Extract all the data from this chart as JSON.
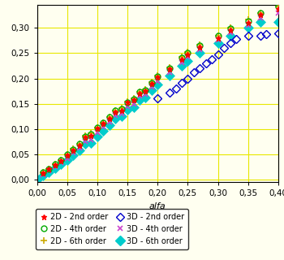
{
  "title": "",
  "xlabel": "alfa",
  "ylabel": "",
  "xlim": [
    0,
    0.4
  ],
  "ylim": [
    -0.005,
    0.345
  ],
  "xticks": [
    0,
    0.05,
    0.1,
    0.15,
    0.2,
    0.25,
    0.3,
    0.35,
    0.4
  ],
  "yticks": [
    0,
    0.05,
    0.1,
    0.15,
    0.2,
    0.25,
    0.3
  ],
  "background_color": "#fffff0",
  "series": {
    "2D_2nd": {
      "x": [
        0.01,
        0.02,
        0.03,
        0.04,
        0.05,
        0.06,
        0.07,
        0.08,
        0.09,
        0.1,
        0.11,
        0.12,
        0.13,
        0.14,
        0.15,
        0.16,
        0.17,
        0.18,
        0.19,
        0.2,
        0.22,
        0.24,
        0.25,
        0.27,
        0.3,
        0.32,
        0.35,
        0.37,
        0.4
      ],
      "y": [
        0.013,
        0.02,
        0.028,
        0.037,
        0.048,
        0.058,
        0.068,
        0.083,
        0.087,
        0.101,
        0.111,
        0.121,
        0.134,
        0.137,
        0.152,
        0.157,
        0.171,
        0.175,
        0.19,
        0.202,
        0.218,
        0.238,
        0.248,
        0.262,
        0.28,
        0.295,
        0.31,
        0.326,
        0.338
      ],
      "color": "#ff0000",
      "marker": "*",
      "markersize": 5,
      "label": "2D - 2nd order"
    },
    "2D_4th": {
      "x": [
        0.01,
        0.02,
        0.03,
        0.04,
        0.05,
        0.06,
        0.07,
        0.08,
        0.09,
        0.1,
        0.11,
        0.12,
        0.13,
        0.14,
        0.15,
        0.16,
        0.17,
        0.18,
        0.19,
        0.2,
        0.22,
        0.24,
        0.25,
        0.27,
        0.3,
        0.32,
        0.35,
        0.37,
        0.4
      ],
      "y": [
        0.014,
        0.021,
        0.03,
        0.039,
        0.05,
        0.06,
        0.07,
        0.085,
        0.09,
        0.102,
        0.113,
        0.123,
        0.136,
        0.14,
        0.153,
        0.159,
        0.173,
        0.177,
        0.192,
        0.204,
        0.22,
        0.241,
        0.251,
        0.265,
        0.284,
        0.299,
        0.314,
        0.329,
        0.342
      ],
      "color": "#00aa00",
      "marker": "o",
      "markersize": 5,
      "label": "2D - 4th order",
      "open": true
    },
    "2D_6th": {
      "x": [
        0.01,
        0.02,
        0.03,
        0.04,
        0.05,
        0.06,
        0.07,
        0.08,
        0.09,
        0.1,
        0.11,
        0.12,
        0.13,
        0.14,
        0.15,
        0.16,
        0.17,
        0.18,
        0.19,
        0.2,
        0.22,
        0.24,
        0.25,
        0.27,
        0.3,
        0.32,
        0.35,
        0.37,
        0.4
      ],
      "y": [
        0.014,
        0.021,
        0.03,
        0.039,
        0.05,
        0.061,
        0.071,
        0.086,
        0.091,
        0.102,
        0.113,
        0.124,
        0.137,
        0.141,
        0.154,
        0.16,
        0.174,
        0.178,
        0.193,
        0.205,
        0.222,
        0.242,
        0.252,
        0.267,
        0.285,
        0.3,
        0.316,
        0.33,
        0.343
      ],
      "color": "#ccaa00",
      "marker": "+",
      "markersize": 6,
      "label": "2D - 6th order"
    },
    "3D_2nd": {
      "x": [
        0.2,
        0.22,
        0.23,
        0.24,
        0.25,
        0.26,
        0.27,
        0.28,
        0.29,
        0.3,
        0.31,
        0.32,
        0.33,
        0.35,
        0.37,
        0.38,
        0.4
      ],
      "y": [
        0.16,
        0.172,
        0.18,
        0.192,
        0.2,
        0.212,
        0.22,
        0.23,
        0.238,
        0.248,
        0.26,
        0.27,
        0.278,
        0.285,
        0.285,
        0.288,
        0.29
      ],
      "color": "#0000cc",
      "marker": "D",
      "markersize": 5,
      "label": "3D - 2nd order",
      "open": true
    },
    "3D_4th": {
      "x": [
        0.01,
        0.02,
        0.03,
        0.04,
        0.05,
        0.06,
        0.07,
        0.08,
        0.09,
        0.1,
        0.11,
        0.12,
        0.13,
        0.14,
        0.15,
        0.16,
        0.17,
        0.18,
        0.19,
        0.2,
        0.22,
        0.24,
        0.25,
        0.27,
        0.3,
        0.32,
        0.35,
        0.37,
        0.4
      ],
      "y": [
        0.01,
        0.017,
        0.025,
        0.033,
        0.042,
        0.053,
        0.063,
        0.075,
        0.079,
        0.093,
        0.104,
        0.114,
        0.127,
        0.13,
        0.145,
        0.15,
        0.165,
        0.168,
        0.183,
        0.195,
        0.212,
        0.232,
        0.242,
        0.257,
        0.276,
        0.291,
        0.306,
        0.32,
        0.33
      ],
      "color": "#cc44cc",
      "marker": "x",
      "markersize": 5,
      "label": "3D - 4th order"
    },
    "3D_6th": {
      "x": [
        0.0,
        0.01,
        0.02,
        0.03,
        0.04,
        0.05,
        0.06,
        0.07,
        0.08,
        0.09,
        0.1,
        0.11,
        0.12,
        0.13,
        0.14,
        0.15,
        0.16,
        0.17,
        0.18,
        0.19,
        0.2,
        0.22,
        0.24,
        0.25,
        0.27,
        0.3,
        0.32,
        0.35,
        0.37,
        0.4
      ],
      "y": [
        0.0,
        0.008,
        0.015,
        0.022,
        0.03,
        0.038,
        0.048,
        0.058,
        0.07,
        0.073,
        0.085,
        0.097,
        0.108,
        0.12,
        0.125,
        0.138,
        0.143,
        0.157,
        0.162,
        0.176,
        0.188,
        0.205,
        0.225,
        0.235,
        0.25,
        0.27,
        0.285,
        0.3,
        0.312,
        0.312
      ],
      "color": "#00cccc",
      "marker": "D",
      "markersize": 6,
      "label": "3D - 6th order",
      "filled": true
    }
  },
  "legend_ncol": 2,
  "legend_fontsize": 7,
  "tick_fontsize": 7.5,
  "xlabel_fontsize": 8,
  "xlabel_style": "italic",
  "grid_color": "#e8e800",
  "figsize": [
    3.5,
    3.2
  ],
  "dpi": 100
}
